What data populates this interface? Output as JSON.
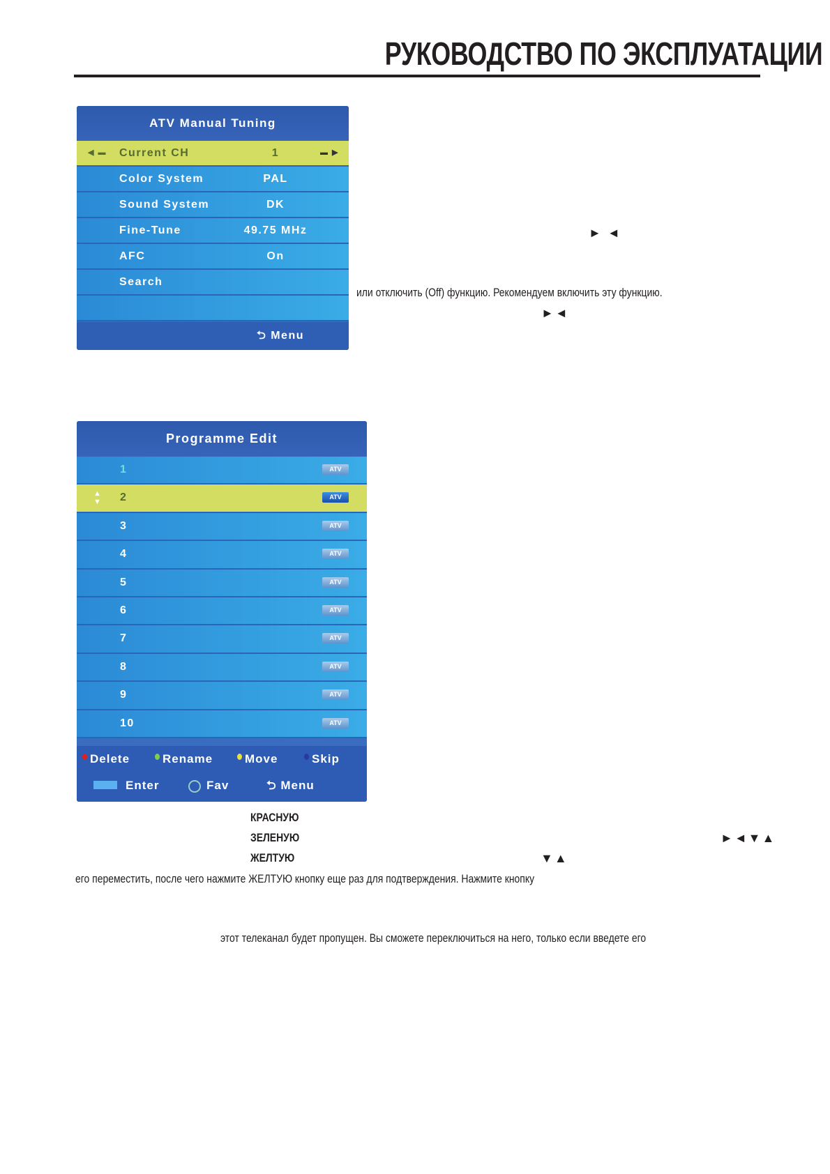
{
  "header": {
    "title": "РУКОВОДСТВО ПО ЭКСПЛУАТАЦИИ"
  },
  "atv_menu": {
    "title": "ATV Manual Tuning",
    "rows": [
      {
        "label": "Current CH",
        "value": "1",
        "selected": true
      },
      {
        "label": "Color System",
        "value": "PAL"
      },
      {
        "label": "Sound System",
        "value": "DK"
      },
      {
        "label": "Fine-Tune",
        "value": "49.75 MHz"
      },
      {
        "label": "AFC",
        "value": "On"
      },
      {
        "label": "Search",
        "value": ""
      }
    ],
    "footer_menu": "Menu"
  },
  "programme_edit": {
    "title": "Programme Edit",
    "rows": [
      {
        "num": "1",
        "tag": "ATV"
      },
      {
        "num": "2",
        "tag": "ATV",
        "selected": true
      },
      {
        "num": "3",
        "tag": "ATV"
      },
      {
        "num": "4",
        "tag": "ATV"
      },
      {
        "num": "5",
        "tag": "ATV"
      },
      {
        "num": "6",
        "tag": "ATV"
      },
      {
        "num": "7",
        "tag": "ATV"
      },
      {
        "num": "8",
        "tag": "ATV"
      },
      {
        "num": "9",
        "tag": "ATV"
      },
      {
        "num": "10",
        "tag": "ATV"
      }
    ],
    "keys": {
      "delete": "Delete",
      "rename": "Rename",
      "move": "Move",
      "skip": "Skip",
      "enter": "Enter",
      "fav": "Fav",
      "menu": "Menu"
    },
    "key_colors": {
      "delete": "#e02020",
      "rename": "#7ed04a",
      "move": "#e8e040",
      "skip": "#2a3aa0"
    }
  },
  "text": {
    "arrows1": "► ◄",
    "afc_line": "или отключить (Off) функцию. Рекомендуем включить эту функцию.",
    "arrows2": "►◄",
    "red": "КРАСНУЮ",
    "green": "ЗЕЛЕНУЮ",
    "yellow": "ЖЕЛТУЮ",
    "arrows3": "►◄▼▲",
    "arrows4": "▼▲",
    "move_line": "его переместить, после чего нажмите ЖЕЛТУЮ кнопку еще раз для подтверждения. Нажмите кнопку",
    "skip_line": "этот телеканал будет пропущен. Вы сможете переключиться на него, только если введете его"
  }
}
